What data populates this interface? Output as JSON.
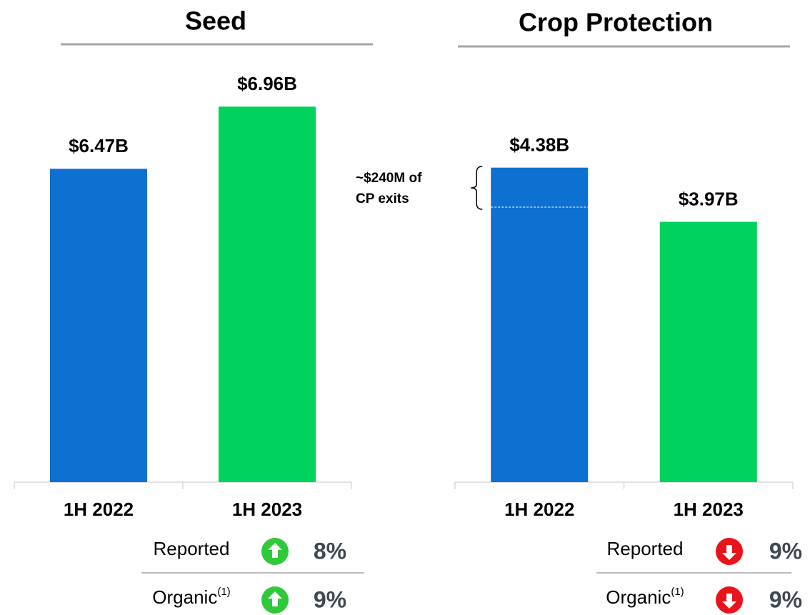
{
  "chart_data": [
    {
      "type": "bar",
      "title": "Seed",
      "categories": [
        "1H 2022",
        "1H 2023"
      ],
      "values": [
        6.47,
        6.96
      ],
      "value_labels": [
        "$6.47B",
        "$6.96B"
      ],
      "colors": [
        "#0e70d0",
        "#00d35d"
      ],
      "ylim": [
        4,
        7.5
      ],
      "changes": [
        {
          "label": "Reported",
          "direction": "up",
          "change": "8%"
        },
        {
          "label": "Organic",
          "note": "(1)",
          "direction": "up",
          "change": "9%"
        }
      ]
    },
    {
      "type": "bar",
      "title": "Crop Protection",
      "categories": [
        "1H 2022",
        "1H 2023"
      ],
      "values": [
        4.38,
        3.97
      ],
      "value_labels": [
        "$4.38B",
        "$3.97B"
      ],
      "colors": [
        "#0e70d0",
        "#00d35d"
      ],
      "ylim": [
        2,
        5
      ],
      "annotation": [
        "~$240M of",
        "CP exits"
      ],
      "changes": [
        {
          "label": "Reported",
          "direction": "down",
          "change": "9%"
        },
        {
          "label": "Organic",
          "note": "(1)",
          "direction": "down",
          "change": "9%"
        }
      ]
    }
  ]
}
